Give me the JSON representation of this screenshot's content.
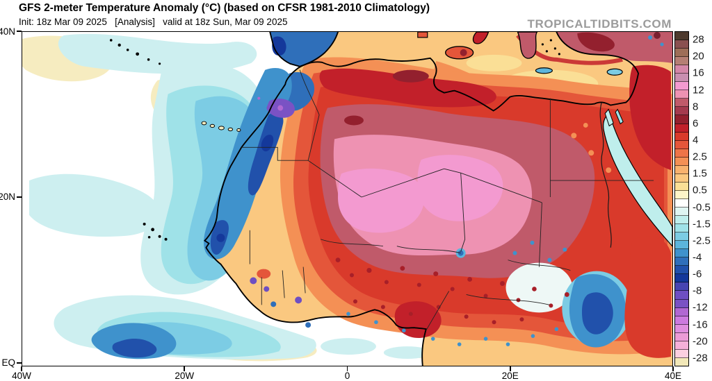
{
  "header": {
    "title": "GFS 2-meter Temperature Anomaly (°C) (based on CFSR 1981-2010 Climatology)",
    "subtitle": "Init: 18z Mar 09 2025   [Analysis]   valid at 18z Sun, Mar 09 2025",
    "watermark": "TROPICALTIDBITS.COM"
  },
  "map": {
    "lat_ticks": [
      {
        "label": "40N",
        "pos": 0.0
      },
      {
        "label": "20N",
        "pos": 0.4948
      },
      {
        "label": "EQ",
        "pos": 0.9896
      }
    ],
    "lon_ticks": [
      {
        "label": "40W",
        "pos": 0.0
      },
      {
        "label": "20W",
        "pos": 0.25
      },
      {
        "label": "0",
        "pos": 0.5
      },
      {
        "label": "20E",
        "pos": 0.75
      },
      {
        "label": "40E",
        "pos": 1.0
      }
    ]
  },
  "colorbar": {
    "units": "°C",
    "segments": [
      {
        "color": "#4e3a2e",
        "label": "28"
      },
      {
        "color": "#8a5050"
      },
      {
        "color": "#9e6e58",
        "label": "20"
      },
      {
        "color": "#b57f74"
      },
      {
        "color": "#d487a8",
        "label": "16"
      },
      {
        "color": "#c98fb0"
      },
      {
        "color": "#f39ad0",
        "label": "12"
      },
      {
        "color": "#ee92b2"
      },
      {
        "color": "#c05a6a",
        "label": "8"
      },
      {
        "color": "#a43a4e"
      },
      {
        "color": "#93202e",
        "label": "6"
      },
      {
        "color": "#c2202a"
      },
      {
        "color": "#d93a2b",
        "label": "4"
      },
      {
        "color": "#e4563a"
      },
      {
        "color": "#ee7448",
        "label": "2.5"
      },
      {
        "color": "#f49055"
      },
      {
        "color": "#f8b26e",
        "label": "1.5"
      },
      {
        "color": "#fac880"
      },
      {
        "color": "#fadf96",
        "label": "0.5"
      },
      {
        "color": "#fdf4c8"
      },
      {
        "color": "#ffffff",
        "label": "-0.5"
      },
      {
        "color": "#dff5f2"
      },
      {
        "color": "#bfeeec",
        "label": "-1.5"
      },
      {
        "color": "#9fe2e8"
      },
      {
        "color": "#7ccce4",
        "label": "-2.5"
      },
      {
        "color": "#5cb5dc"
      },
      {
        "color": "#3f92cc",
        "label": "-4"
      },
      {
        "color": "#2f6fba"
      },
      {
        "color": "#2151ab",
        "label": "-6"
      },
      {
        "color": "#14389b"
      },
      {
        "color": "#4745b2",
        "label": "-8"
      },
      {
        "color": "#6e4fc2"
      },
      {
        "color": "#7a52c4",
        "label": "-12"
      },
      {
        "color": "#b168d2"
      },
      {
        "color": "#cc7ade",
        "label": "-16"
      },
      {
        "color": "#df8ede"
      },
      {
        "color": "#eb9bd6",
        "label": "-20"
      },
      {
        "color": "#f5b0d8"
      },
      {
        "color": "#fbcfe0",
        "label": "-28"
      },
      {
        "color": "#f2e8b8"
      }
    ]
  },
  "chart_data": {
    "type": "heatmap",
    "title": "GFS 2-meter Temperature Anomaly (°C) (based on CFSR 1981-2010 Climatology)",
    "valid": "18z Sun, Mar 09 2025",
    "units": "°C",
    "region": "Africa and eastern Atlantic, 40W–40E, ~EQ–40N",
    "xlabel_ticks": [
      "40W",
      "20W",
      "0",
      "20E",
      "40E"
    ],
    "ylabel_ticks": [
      "40N",
      "20N",
      "EQ"
    ],
    "scale_boundaries": [
      -28,
      -24,
      -20,
      -18,
      -16,
      -14,
      -12,
      -10,
      -8,
      -7,
      -6,
      -5,
      -4,
      -3,
      -2.5,
      -2,
      -1.5,
      -1,
      -0.5,
      0,
      0.5,
      1,
      1.5,
      2,
      2.5,
      3,
      4,
      5,
      6,
      7,
      8,
      10,
      12,
      14,
      16,
      18,
      20,
      24,
      28
    ],
    "labeled_ticks": [
      28,
      20,
      16,
      12,
      8,
      6,
      4,
      2.5,
      1.5,
      0.5,
      -0.5,
      -1.5,
      -2.5,
      -4,
      -6,
      -8,
      -12,
      -16,
      -20,
      -28
    ],
    "notable_features": [
      {
        "area": "Central Sahara (Mali / Niger / southern Algeria)",
        "anomaly_c": "+10 to +16"
      },
      {
        "area": "Wider Sahara / Sahel ring",
        "anomaly_c": "+4 to +10"
      },
      {
        "area": "Northwest African coast waters (W Sahara to Senegal)",
        "anomaly_c": "-3 to -7"
      },
      {
        "area": "Morocco Atlantic coast spots",
        "anomaly_c": "-8 to -14"
      },
      {
        "area": "Iberia (Portugal / SW Spain)",
        "anomaly_c": "-4 to -7"
      },
      {
        "area": "Open eastern Atlantic",
        "anomaly_c": "-0.5 to -2.5"
      },
      {
        "area": "Mediterranean Sea",
        "anomaly_c": "+1 to +3"
      },
      {
        "area": "Anatolia (Turkey)",
        "anomaly_c": "+8 to +16"
      },
      {
        "area": "Egypt / Levant",
        "anomaly_c": "+3 to +8"
      },
      {
        "area": "Red Sea",
        "anomaly_c": "-1 to -2"
      },
      {
        "area": "South Sudan / Uganda area",
        "anomaly_c": "-2 to -6"
      },
      {
        "area": "Azores region",
        "anomaly_c": "+0.5 to +1.5"
      }
    ]
  }
}
